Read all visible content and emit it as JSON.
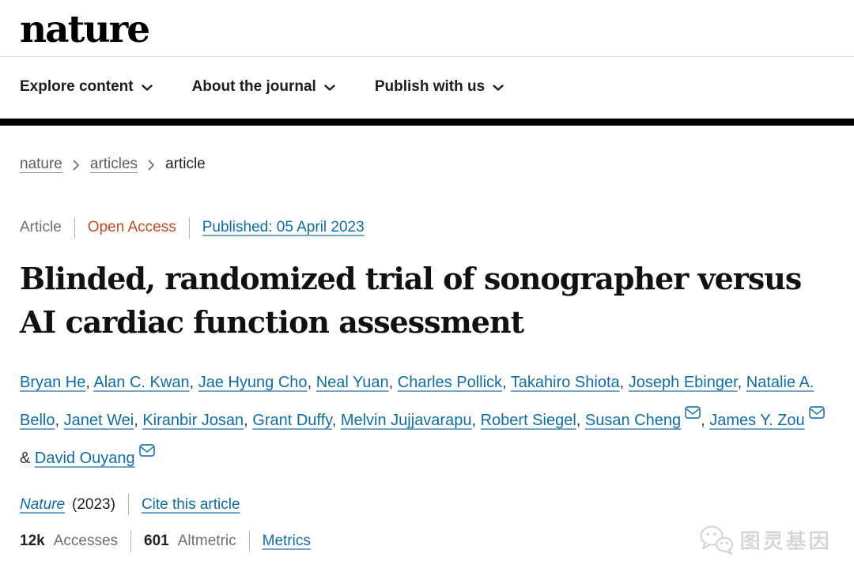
{
  "brand": {
    "logo_text": "nature"
  },
  "nav": {
    "items": [
      {
        "label": "Explore content",
        "icon": "chevron-down-icon"
      },
      {
        "label": "About the journal",
        "icon": "chevron-down-icon"
      },
      {
        "label": "Publish with us",
        "icon": "chevron-down-icon"
      }
    ]
  },
  "breadcrumb": {
    "items": [
      {
        "label": "nature",
        "is_link": true
      },
      {
        "label": "articles",
        "is_link": true
      },
      {
        "label": "article",
        "is_link": false
      }
    ],
    "separator_icon": "chevron-right-icon"
  },
  "article": {
    "type_label": "Article",
    "access_label": "Open Access",
    "published_link": "Published: 05 April 2023",
    "title": "Blinded, randomized trial of sonographer versus AI cardiac function assessment",
    "title_lines": [
      "Blinded, randomized trial of sonographer versus",
      "AI cardiac function assessment"
    ]
  },
  "authors": {
    "list": [
      {
        "name": "Bryan He",
        "envelope": false
      },
      {
        "name": "Alan C. Kwan",
        "envelope": false
      },
      {
        "name": "Jae Hyung Cho",
        "envelope": false
      },
      {
        "name": "Neal Yuan",
        "envelope": false
      },
      {
        "name": "Charles Pollick",
        "envelope": false
      },
      {
        "name": "Takahiro Shiota",
        "envelope": false
      },
      {
        "name": "Joseph Ebinger",
        "envelope": false
      },
      {
        "name": "Natalie A. Bello",
        "envelope": false
      },
      {
        "name": "Janet Wei",
        "envelope": false
      },
      {
        "name": "Kiranbir Josan",
        "envelope": false
      },
      {
        "name": "Grant Duffy",
        "envelope": false
      },
      {
        "name": "Melvin Jujjavarapu",
        "envelope": false
      },
      {
        "name": "Robert Siegel",
        "envelope": false
      },
      {
        "name": "Susan Cheng",
        "envelope": true
      },
      {
        "name": "James Y. Zou",
        "envelope": true
      },
      {
        "name": "David Ouyang",
        "envelope": true
      }
    ],
    "comma_separator": ",",
    "last_separator": "&",
    "envelope_icon": "envelope-icon"
  },
  "citation": {
    "journal_label": "Nature",
    "year_label": "(2023)",
    "cite_link_label": "Cite this article"
  },
  "metrics": {
    "accesses_value": "12k",
    "accesses_label": "Accesses",
    "altmetric_value": "601",
    "altmetric_label": "Altmetric",
    "metrics_link_label": "Metrics"
  },
  "watermark": {
    "icon": "wechat-icon",
    "text": "图灵基因"
  },
  "colors": {
    "link_blue": "#0d6da8",
    "open_access_orange": "#c6481f",
    "header_bar_black": "#000000",
    "text_dark": "#1f1f1f",
    "text_gray": "#6e6e6e",
    "watermark_gray": "#d2d2d2"
  }
}
